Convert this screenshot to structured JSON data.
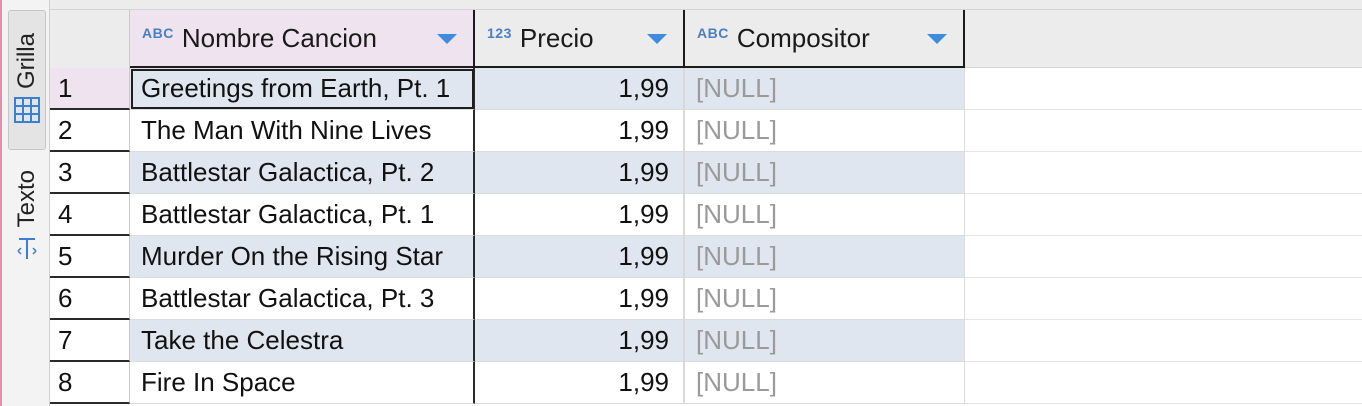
{
  "side_tabs": {
    "grid_label": "Grilla",
    "text_label": "Texto"
  },
  "columns": [
    {
      "type": "ABC",
      "name": "Nombre Cancion"
    },
    {
      "type": "123",
      "name": "Precio"
    },
    {
      "type": "ABC",
      "name": "Compositor"
    }
  ],
  "rows": [
    {
      "num": "1",
      "name": "Greetings from Earth, Pt. 1",
      "price": "1,99",
      "composer": "[NULL]"
    },
    {
      "num": "2",
      "name": "The Man With Nine Lives",
      "price": "1,99",
      "composer": "[NULL]"
    },
    {
      "num": "3",
      "name": "Battlestar Galactica, Pt. 2",
      "price": "1,99",
      "composer": "[NULL]"
    },
    {
      "num": "4",
      "name": "Battlestar Galactica, Pt. 1",
      "price": "1,99",
      "composer": "[NULL]"
    },
    {
      "num": "5",
      "name": "Murder On the Rising Star",
      "price": "1,99",
      "composer": "[NULL]"
    },
    {
      "num": "6",
      "name": "Battlestar Galactica, Pt. 3",
      "price": "1,99",
      "composer": "[NULL]"
    },
    {
      "num": "7",
      "name": "Take the Celestra",
      "price": "1,99",
      "composer": "[NULL]"
    },
    {
      "num": "8",
      "name": "Fire In Space",
      "price": "1,99",
      "composer": "[NULL]"
    }
  ],
  "colors": {
    "accent": "#3f8be0",
    "selected_header": "#efe3ef",
    "stripe": "#e0e6f0",
    "null_text": "#9a9a9a"
  }
}
